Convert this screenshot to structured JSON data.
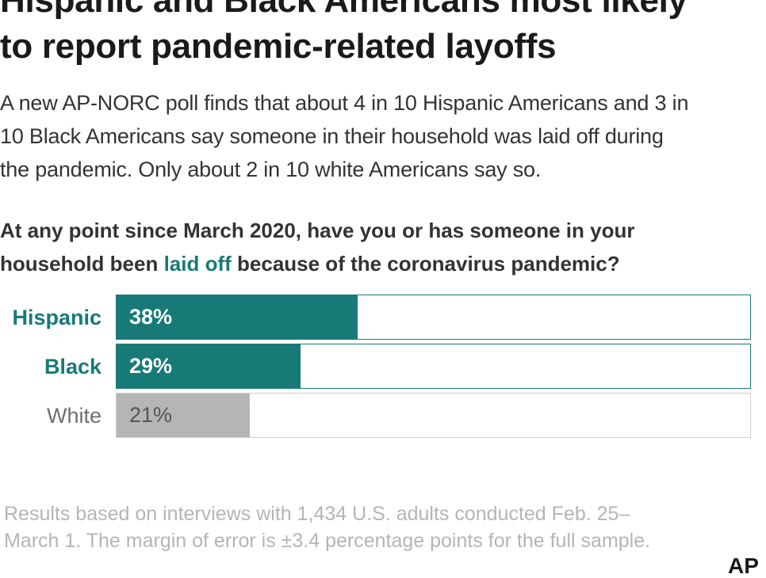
{
  "title": {
    "line1": "Hispanic and Black Americans most likely",
    "line2": "to report pandemic-related layoffs"
  },
  "dek": {
    "line1": "A new AP-NORC poll finds that about 4 in 10 Hispanic Americans and 3 in",
    "line2": "10 Black Americans say someone in their household was laid off during",
    "line3": "the pandemic. Only about 2 in 10 white Americans say so."
  },
  "question": {
    "line1": "At any point since March 2020, have you or has someone in your",
    "line2_before": "household been ",
    "line2_highlight": "laid off",
    "line2_after": " because of the coronavirus pandemic?"
  },
  "colors": {
    "accent": "#177a77",
    "muted": "#b5b5b5",
    "white_bar": "#b5b5b5",
    "white_label": "#6f6f6f"
  },
  "chart_data": {
    "type": "bar",
    "orientation": "horizontal",
    "categories": [
      "Hispanic",
      "Black",
      "White"
    ],
    "values": [
      38,
      29,
      21
    ],
    "value_labels": [
      "38%",
      "29%",
      "21%"
    ],
    "xlim": [
      0,
      100
    ]
  },
  "footnote": {
    "line1": "Results based on interviews with 1,434 U.S. adults conducted Feb. 25–",
    "line2": "March 1. The margin of error is ±3.4 percentage points for the full sample."
  },
  "logo": {
    "text": "AP"
  }
}
